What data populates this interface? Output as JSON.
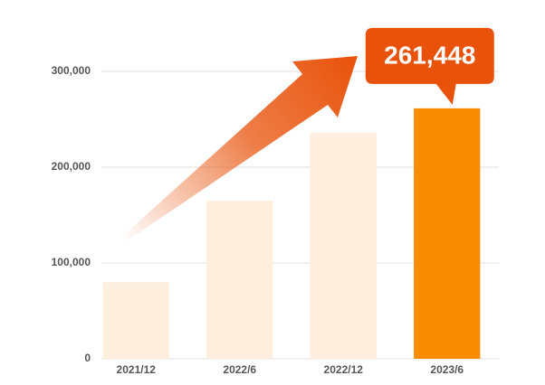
{
  "chart_data": {
    "type": "bar",
    "categories": [
      "2021/12",
      "2022/6",
      "2022/12",
      "2023/6"
    ],
    "values": [
      80000,
      165000,
      236000,
      261448
    ],
    "value_labels": [
      null,
      null,
      null,
      "261,448"
    ],
    "colors": [
      "#fdeedd",
      "#fdeedd",
      "#fdeedd",
      "#f98c00"
    ],
    "callout_color": "#e8520a",
    "ylim": [
      0,
      300000
    ],
    "yticks": [
      0,
      {
        "value": 100000,
        "label": "100,000"
      },
      {
        "value": 200000,
        "label": "200,000"
      },
      {
        "value": 300000,
        "label": "300,000"
      }
    ],
    "grid": true
  }
}
